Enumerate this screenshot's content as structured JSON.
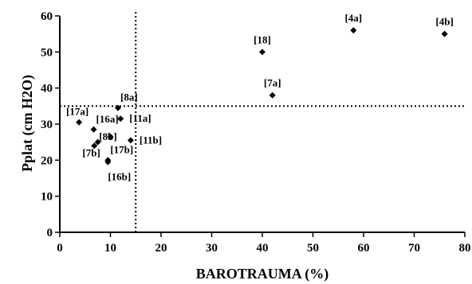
{
  "chart_data": {
    "type": "scatter",
    "xlabel": "BAROTRAUMA (%)",
    "ylabel": "Pplat (cm H2O)",
    "xlim": [
      0,
      80
    ],
    "ylim": [
      0,
      60
    ],
    "xticks": [
      0,
      10,
      20,
      30,
      40,
      50,
      60,
      70,
      80
    ],
    "yticks": [
      0,
      10,
      20,
      30,
      40,
      50,
      60
    ],
    "xtick_labels": [
      "0",
      "10",
      "20",
      "30",
      "40",
      "50",
      "60",
      "70",
      "80"
    ],
    "ytick_labels": [
      "0",
      "10",
      "20",
      "30",
      "40",
      "50",
      "60"
    ],
    "reference_lines": {
      "x": 15,
      "y": 35
    },
    "grid": false,
    "marker_color": "#000000",
    "points": [
      {
        "label": "[4a]",
        "x": 58,
        "y": 56,
        "label_pos": "above"
      },
      {
        "label": "[4b]",
        "x": 76,
        "y": 55,
        "label_pos": "above"
      },
      {
        "label": "[18]",
        "x": 40,
        "y": 50,
        "label_pos": "above"
      },
      {
        "label": "[7a]",
        "x": 42,
        "y": 38,
        "label_pos": "above"
      },
      {
        "label": "[8a]",
        "x": 11.5,
        "y": 34.5,
        "label_pos": "above-right"
      },
      {
        "label": "[11a]",
        "x": 12,
        "y": 31.5,
        "label_pos": "right"
      },
      {
        "label": "[17a]",
        "x": 3.8,
        "y": 30.5,
        "label_pos": "above-left"
      },
      {
        "label": "[16a]",
        "x": 6.7,
        "y": 28.5,
        "label_pos": "above-right"
      },
      {
        "label": "[8b]",
        "x": 10,
        "y": 26.5,
        "label_pos": "left"
      },
      {
        "label": "[11b]",
        "x": 14,
        "y": 25.5,
        "label_pos": "right"
      },
      {
        "label": "[7b]",
        "x": 7.5,
        "y": 25,
        "label_pos": "below-left"
      },
      {
        "label": "",
        "x": 6.8,
        "y": 24,
        "label_pos": "none"
      },
      {
        "label": "[17b]",
        "x": 9.5,
        "y": 20,
        "label_pos": "above-right"
      },
      {
        "label": "[16b]",
        "x": 9.5,
        "y": 19.5,
        "label_pos": "below-right"
      }
    ]
  }
}
